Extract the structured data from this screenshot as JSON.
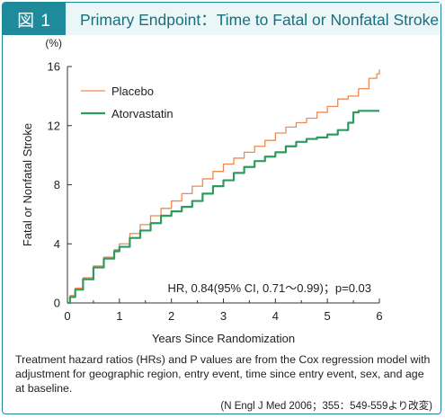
{
  "header": {
    "figure_label": "図 1",
    "title": "Primary Endpoint：Time to Fatal or Nonfatal Stroke"
  },
  "colors": {
    "accent": "#1f8a9a",
    "placebo": "#f0894f",
    "atorvastatin": "#2f9a5e"
  },
  "chart_data": {
    "type": "line",
    "title": "Primary Endpoint：Time to Fatal or Nonfatal Stroke",
    "xlabel": "Years Since Randomization",
    "ylabel": "Fatal or Nonfatal Stroke",
    "y_unit": "(%)",
    "xlim": [
      0,
      6
    ],
    "ylim": [
      0,
      16
    ],
    "x_ticks": [
      "0",
      "1",
      "2",
      "3",
      "4",
      "5",
      "6"
    ],
    "y_ticks": [
      "0",
      "4",
      "8",
      "12",
      "16"
    ],
    "grid": false,
    "legend_placement": "top-left",
    "series": [
      {
        "name": "Placebo",
        "color": "#f0894f",
        "points": [
          [
            0,
            0
          ],
          [
            0.05,
            0.5
          ],
          [
            0.15,
            1.0
          ],
          [
            0.3,
            1.7
          ],
          [
            0.5,
            2.5
          ],
          [
            0.7,
            3.1
          ],
          [
            0.9,
            3.6
          ],
          [
            1.0,
            4.0
          ],
          [
            1.2,
            4.7
          ],
          [
            1.4,
            5.3
          ],
          [
            1.6,
            5.9
          ],
          [
            1.8,
            6.4
          ],
          [
            2.0,
            6.9
          ],
          [
            2.2,
            7.4
          ],
          [
            2.4,
            7.9
          ],
          [
            2.6,
            8.4
          ],
          [
            2.8,
            8.9
          ],
          [
            3.0,
            9.4
          ],
          [
            3.2,
            9.8
          ],
          [
            3.4,
            10.2
          ],
          [
            3.6,
            10.6
          ],
          [
            3.8,
            11.0
          ],
          [
            4.0,
            11.5
          ],
          [
            4.2,
            11.9
          ],
          [
            4.4,
            12.2
          ],
          [
            4.6,
            12.5
          ],
          [
            4.8,
            12.9
          ],
          [
            5.0,
            13.3
          ],
          [
            5.2,
            13.8
          ],
          [
            5.4,
            14.0
          ],
          [
            5.6,
            14.5
          ],
          [
            5.8,
            15.2
          ],
          [
            5.95,
            15.5
          ],
          [
            6.0,
            15.8
          ]
        ]
      },
      {
        "name": "Atorvastatin",
        "color": "#2f9a5e",
        "points": [
          [
            0,
            0
          ],
          [
            0.05,
            0.4
          ],
          [
            0.15,
            0.9
          ],
          [
            0.3,
            1.6
          ],
          [
            0.5,
            2.4
          ],
          [
            0.7,
            3.0
          ],
          [
            0.9,
            3.5
          ],
          [
            1.0,
            3.8
          ],
          [
            1.2,
            4.4
          ],
          [
            1.4,
            4.9
          ],
          [
            1.6,
            5.4
          ],
          [
            1.8,
            5.9
          ],
          [
            2.0,
            6.2
          ],
          [
            2.2,
            6.5
          ],
          [
            2.4,
            6.9
          ],
          [
            2.6,
            7.4
          ],
          [
            2.8,
            7.9
          ],
          [
            3.0,
            8.3
          ],
          [
            3.2,
            8.8
          ],
          [
            3.4,
            9.2
          ],
          [
            3.6,
            9.6
          ],
          [
            3.8,
            9.9
          ],
          [
            4.0,
            10.2
          ],
          [
            4.2,
            10.6
          ],
          [
            4.4,
            10.9
          ],
          [
            4.6,
            11.1
          ],
          [
            4.8,
            11.2
          ],
          [
            5.0,
            11.4
          ],
          [
            5.2,
            11.7
          ],
          [
            5.4,
            12.2
          ],
          [
            5.5,
            12.9
          ],
          [
            5.6,
            13.0
          ],
          [
            6.0,
            13.0
          ]
        ]
      }
    ],
    "annotation": "HR, 0.84(95% CI, 0.71～0.99)；p=0.03"
  },
  "caption": "Treatment hazard ratios (HRs) and P values are from the Cox regression model with adjustment for geographic region, entry event, time since entry event, sex, and age at baseline.",
  "source": "(N Engl J Med 2006；355：549-559より改変)"
}
